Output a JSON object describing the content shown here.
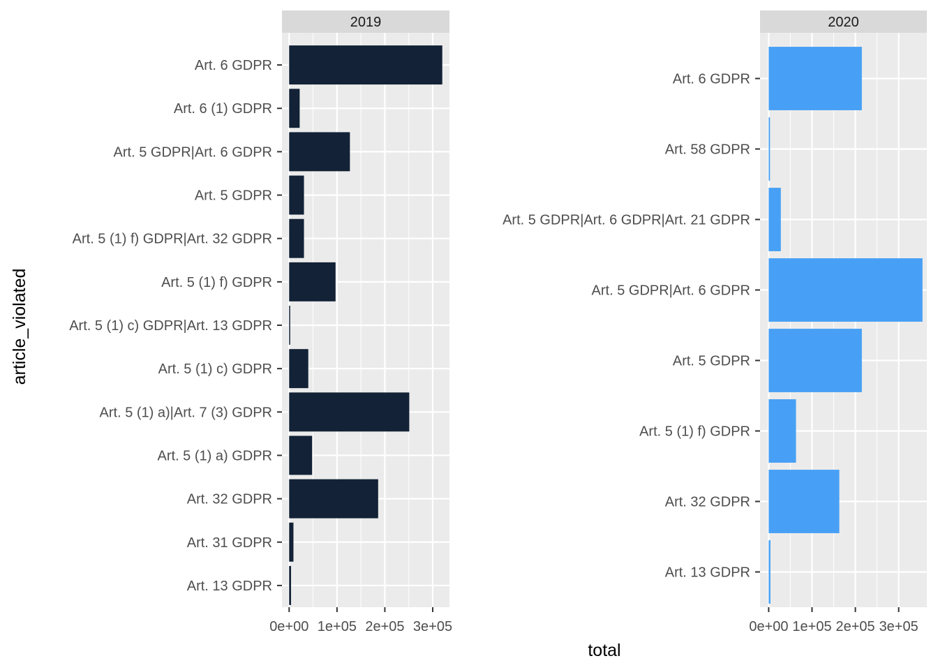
{
  "chart_data": {
    "type": "bar",
    "orientation": "horizontal",
    "ylabel": "article_violated",
    "xlabel": "total",
    "grid": true,
    "panels": [
      {
        "strip": "2019",
        "color": "#132236",
        "xlim": [
          -15000,
          335000
        ],
        "xticks": [
          0,
          100000,
          200000,
          300000
        ],
        "xtick_labels": [
          "0e+00",
          "1e+05",
          "2e+05",
          "3e+05"
        ],
        "categories": [
          "Art. 6 GDPR",
          "Art. 6 (1) GDPR",
          "Art. 5 GDPR|Art. 6 GDPR",
          "Art. 5 GDPR",
          "Art. 5 (1) f) GDPR|Art. 32 GDPR",
          "Art. 5 (1) f) GDPR",
          "Art. 5 (1) c) GDPR|Art. 13 GDPR",
          "Art. 5 (1) c) GDPR",
          "Art. 5 (1) a)|Art. 7 (3) GDPR",
          "Art. 5 (1) a) GDPR",
          "Art. 32 GDPR",
          "Art. 31 GDPR",
          "Art. 13 GDPR"
        ],
        "values": [
          320000,
          22000,
          127000,
          31000,
          31000,
          97000,
          1500,
          40000,
          251000,
          48000,
          186000,
          9000,
          4000
        ]
      },
      {
        "strip": "2020",
        "color": "#47a0f5",
        "xlim": [
          -20000,
          365000
        ],
        "xticks": [
          0,
          100000,
          200000,
          300000
        ],
        "xtick_labels": [
          "0e+00",
          "1e+05",
          "2e+05",
          "3e+05"
        ],
        "categories": [
          "Art. 6 GDPR",
          "Art. 58 GDPR",
          "Art. 5 GDPR|Art. 6 GDPR|Art. 21 GDPR",
          "Art. 5 GDPR|Art. 6 GDPR",
          "Art. 5 GDPR",
          "Art. 5 (1) f) GDPR",
          "Art. 32 GDPR",
          "Art. 13 GDPR"
        ],
        "values": [
          215000,
          3000,
          28000,
          355000,
          215000,
          63000,
          163000,
          4000
        ]
      }
    ]
  }
}
